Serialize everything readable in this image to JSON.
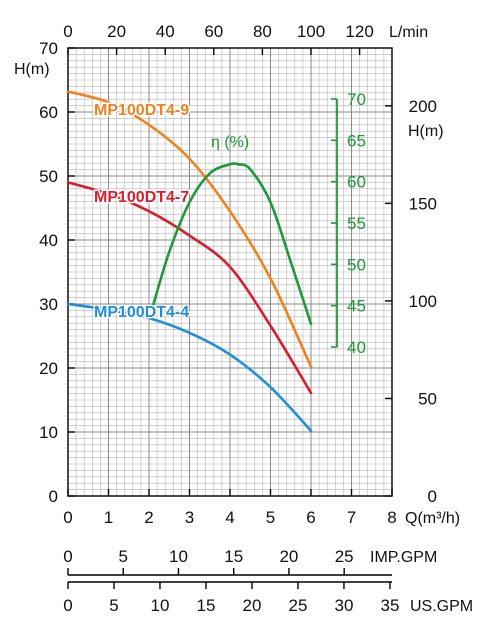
{
  "chart_data": {
    "type": "line",
    "title": "",
    "colors": {
      "grid": "#b5b5b5",
      "axis": "#000000",
      "eff": "#1f9a3a",
      "s9": "#f0821e",
      "s7": "#d81e2c",
      "s4": "#1f8fd6"
    },
    "axes": {
      "q": {
        "label": "Q(m³/h)",
        "ticks": [
          0,
          1,
          2,
          3,
          4,
          5,
          6,
          7,
          8
        ],
        "range": [
          0,
          8
        ]
      },
      "lmin": {
        "label": "L/min",
        "ticks": [
          0,
          20,
          40,
          60,
          80,
          100,
          120
        ]
      },
      "h_left": {
        "label": "H(m)",
        "ticks": [
          0,
          10,
          20,
          30,
          40,
          50,
          60,
          70
        ],
        "range": [
          0,
          70
        ]
      },
      "h_ft": {
        "label_top": "200",
        "label": "H(m)",
        "ticks": [
          0,
          50,
          100,
          150,
          200
        ]
      },
      "eff": {
        "label": "η (%)",
        "ticks": [
          40,
          45,
          50,
          55,
          60,
          65,
          70
        ],
        "range": [
          40,
          70
        ]
      },
      "imp": {
        "label": "IMP.GPM",
        "ticks": [
          0,
          5,
          10,
          15,
          20,
          25
        ]
      },
      "us": {
        "label": "US.GPM",
        "ticks": [
          0,
          5,
          10,
          15,
          20,
          25,
          30,
          35
        ]
      }
    },
    "series": [
      {
        "name": "MP100DT4-9",
        "color_key": "s9",
        "axis": "h_left",
        "x": [
          0,
          1,
          2,
          3,
          4,
          5,
          6
        ],
        "y": [
          63.2,
          61.5,
          58,
          52.7,
          44.5,
          34,
          20.2
        ]
      },
      {
        "name": "MP100DT4-7",
        "color_key": "s7",
        "axis": "h_left",
        "x": [
          0,
          1,
          2,
          3,
          4,
          5,
          6
        ],
        "y": [
          49,
          47.2,
          44.5,
          40.7,
          35.8,
          26.6,
          16.1
        ]
      },
      {
        "name": "MP100DT4-4",
        "color_key": "s4",
        "axis": "h_left",
        "x": [
          0,
          1,
          2,
          3,
          4,
          5,
          6
        ],
        "y": [
          30,
          29.1,
          27.8,
          25.5,
          22.1,
          17,
          10.2
        ]
      },
      {
        "name": "",
        "color_key": "eff",
        "axis": "eff",
        "x": [
          2.1,
          2.5,
          3,
          3.5,
          4,
          4.2,
          4.5,
          5,
          5.5,
          6
        ],
        "y": [
          45,
          51.5,
          57.5,
          61,
          62.1,
          62.1,
          61.5,
          57.5,
          50.3,
          42.8
        ]
      }
    ]
  }
}
